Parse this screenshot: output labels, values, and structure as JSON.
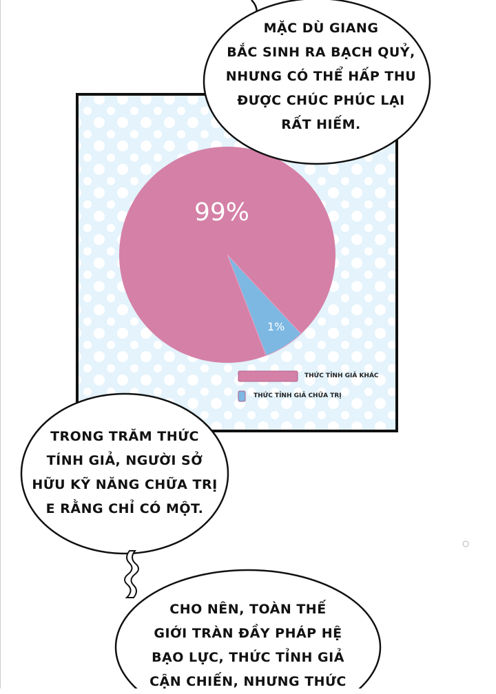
{
  "bubbles": {
    "top": [
      "MẶC DÙ GIANG",
      "BẮC SINH RA BẠCH QUỶ,",
      "NHƯNG CÓ THỂ HẤP THU",
      "ĐƯỢC CHÚC PHÚC LẠI",
      "RẤT HIẾM."
    ],
    "left": [
      "TRONG TRĂM THỨC",
      "TÍNH GIẢ, NGƯỜI SỞ",
      "HỮU KỸ NĂNG CHỮA TRỊ",
      "E RẰNG CHỈ CÓ MỘT."
    ],
    "bottom": [
      "CHO NÊN, TOÀN THẾ",
      "GIỚI TRÀN ĐẦY PHÁP HỆ",
      "BẠO LỰC, THỨC TỈNH GIẢ",
      "CẬN CHIẾN, NHƯNG THỨC"
    ]
  },
  "chart_data": {
    "type": "pie",
    "slices": [
      {
        "name": "THỨC TỈNH GIẢ KHÁC",
        "value": 99,
        "label": "99%",
        "color": "#d580a7"
      },
      {
        "name": "THỨC TỈNH GIẢ CHỮA TRỊ",
        "value": 1,
        "label": "1%",
        "color": "#7db8e2"
      }
    ],
    "legend_position": "bottom-right",
    "background_color": "#e4f3fc"
  }
}
